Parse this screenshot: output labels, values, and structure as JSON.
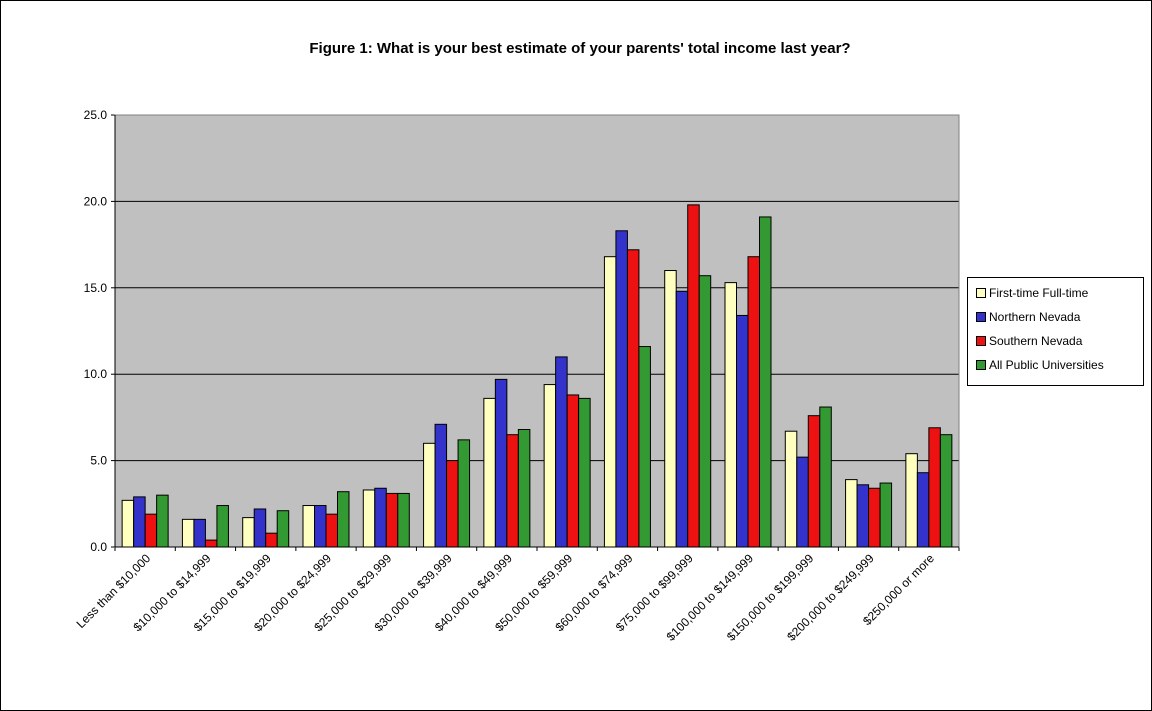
{
  "chart_data": {
    "type": "bar",
    "title": "Figure 1: What is your best estimate of your parents' total income last year?",
    "xlabel": "",
    "ylabel": "",
    "ylim": [
      0,
      25
    ],
    "yticks": [
      "0.0",
      "5.0",
      "10.0",
      "15.0",
      "20.0",
      "25.0"
    ],
    "grid": true,
    "legend_position": "right",
    "plot_background": "#c0c0c0",
    "categories": [
      "Less than $10,000",
      "$10,000 to $14,999",
      "$15,000 to $19,999",
      "$20,000 to $24,999",
      "$25,000 to $29,999",
      "$30,000 to $39,999",
      "$40,000 to $49,999",
      "$50,000 to $59,999",
      "$60,000 to $74,999",
      "$75,000 to $99,999",
      "$100,000 to $149,999",
      "$150,000 to $199,999",
      "$200,000 to $249,999",
      "$250,000 or more"
    ],
    "series": [
      {
        "name": "First-time Full-time",
        "color": "#ffffc0",
        "values": [
          2.7,
          1.6,
          1.7,
          2.4,
          3.3,
          6.0,
          8.6,
          9.4,
          16.8,
          16.0,
          15.3,
          6.7,
          3.9,
          5.4
        ]
      },
      {
        "name": "Northern Nevada",
        "color": "#3333cc",
        "values": [
          2.9,
          1.6,
          2.2,
          2.4,
          3.4,
          7.1,
          9.7,
          11.0,
          18.3,
          14.8,
          13.4,
          5.2,
          3.6,
          4.3
        ]
      },
      {
        "name": "Southern Nevada",
        "color": "#ee1111",
        "values": [
          1.9,
          0.4,
          0.8,
          1.9,
          3.1,
          5.0,
          6.5,
          8.8,
          17.2,
          19.8,
          16.8,
          7.6,
          3.4,
          6.9
        ]
      },
      {
        "name": "All Public Universities",
        "color": "#339933",
        "values": [
          3.0,
          2.4,
          2.1,
          3.2,
          3.1,
          6.2,
          6.8,
          8.6,
          11.6,
          15.7,
          19.1,
          8.1,
          3.7,
          6.5
        ]
      }
    ]
  }
}
